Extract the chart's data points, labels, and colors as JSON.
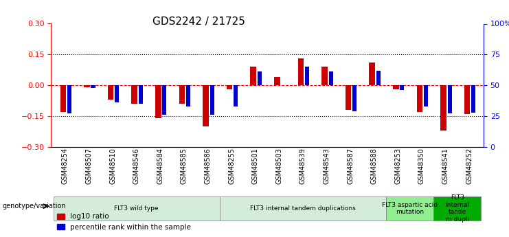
{
  "title": "GDS2242 / 21725",
  "samples": [
    "GSM48254",
    "GSM48507",
    "GSM48510",
    "GSM48546",
    "GSM48584",
    "GSM48585",
    "GSM48586",
    "GSM48255",
    "GSM48501",
    "GSM48503",
    "GSM48539",
    "GSM48543",
    "GSM48587",
    "GSM48588",
    "GSM48253",
    "GSM48350",
    "GSM48541",
    "GSM48252"
  ],
  "log10_ratio": [
    -0.13,
    -0.01,
    -0.07,
    -0.09,
    -0.16,
    -0.09,
    -0.2,
    -0.02,
    0.09,
    0.04,
    0.13,
    0.09,
    -0.12,
    0.11,
    -0.02,
    -0.13,
    -0.22,
    -0.14
  ],
  "percentile_rank": [
    27,
    48,
    36,
    35,
    26,
    33,
    26,
    33,
    61,
    50,
    65,
    61,
    29,
    62,
    46,
    33,
    27,
    28
  ],
  "groups": [
    {
      "label": "FLT3 wild type",
      "start": 0,
      "end": 7,
      "color": "#d4edda"
    },
    {
      "label": "FLT3 internal tandem duplications",
      "start": 7,
      "end": 14,
      "color": "#d4edda"
    },
    {
      "label": "FLT3 aspartic acid\nmutation",
      "start": 14,
      "end": 16,
      "color": "#90ee90"
    },
    {
      "label": "FLT3\ninternal\ntande\nm dupli",
      "start": 16,
      "end": 18,
      "color": "#00aa00"
    }
  ],
  "ylim_left": [
    -0.3,
    0.3
  ],
  "ylim_right": [
    0,
    100
  ],
  "yticks_left": [
    -0.3,
    -0.15,
    0,
    0.15,
    0.3
  ],
  "yticks_right": [
    0,
    25,
    50,
    75,
    100
  ],
  "ytick_labels_right": [
    "0",
    "25",
    "50",
    "75",
    "100%"
  ],
  "bar_width": 0.35,
  "red_color": "#cc0000",
  "blue_color": "#0000cc",
  "legend_items": [
    "log10 ratio",
    "percentile rank within the sample"
  ],
  "genotype_label": "genotype/variation"
}
